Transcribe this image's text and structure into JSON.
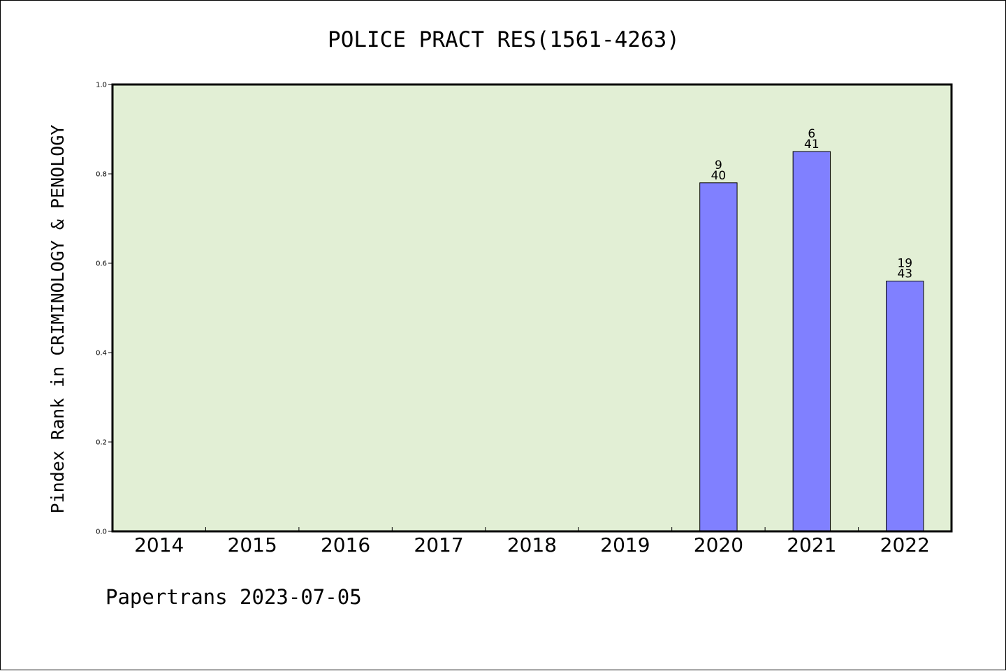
{
  "colors": {
    "plot_background": "#e2efd5",
    "bar_fill": "#8080ff",
    "bar_stroke": "#000000",
    "axis": "#000000"
  },
  "chart_data": {
    "type": "bar",
    "title": "POLICE PRACT RES(1561-4263)",
    "ylabel": "Pindex Rank in CRIMINOLOGY & PENOLOGY",
    "xlabel": "",
    "ylim": [
      0,
      1.0
    ],
    "yticks": [
      "0.0",
      "0.2",
      "0.4",
      "0.6",
      "0.8",
      "1.0"
    ],
    "categories": [
      "2014",
      "2015",
      "2016",
      "2017",
      "2018",
      "2019",
      "2020",
      "2021",
      "2022"
    ],
    "values": [
      null,
      null,
      null,
      null,
      null,
      null,
      0.78,
      0.85,
      0.56
    ],
    "rank_labels": [
      "",
      "",
      "",
      "",
      "",
      "",
      "9",
      "6",
      "19"
    ],
    "total_labels": [
      "",
      "",
      "",
      "",
      "",
      "",
      "40",
      "41",
      "43"
    ],
    "grid": false,
    "legend": "none"
  },
  "footer": "Papertrans 2023-07-05"
}
